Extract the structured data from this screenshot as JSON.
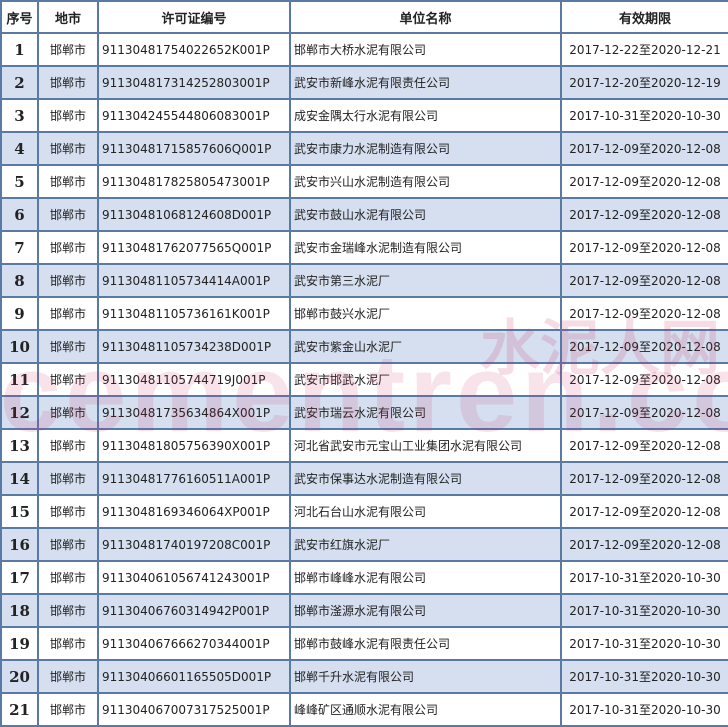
{
  "headers": [
    "序号",
    "地市",
    "许可证编号",
    "单位名称",
    "有效期限"
  ],
  "rows": [
    [
      "1",
      "邯郸市",
      "91130481754022652K001P",
      "邯郸市大桥水泥有限公司",
      "2017-12-22至2020-12-21"
    ],
    [
      "2",
      "邯郸市",
      "91130481731425280300​1P",
      "武安市新峰水泥有限责任公司",
      "2017-12-20至2020-12-19"
    ],
    [
      "3",
      "邯郸市",
      "91130424554480608300​1P",
      "成安金隅太行水泥有限公司",
      "2017-10-31至2020-10-30"
    ],
    [
      "4",
      "邯郸市",
      "91130481715857606Q001P",
      "武安市康力水泥制造有限公司",
      "2017-12-09至2020-12-08"
    ],
    [
      "5",
      "邯郸市",
      "91130481782580547300​1P",
      "武安市兴山水泥制造有限公司",
      "2017-12-09至2020-12-08"
    ],
    [
      "6",
      "邯郸市",
      "91130481068124608D001P",
      "武安市鼓山水泥有限公司",
      "2017-12-09至2020-12-08"
    ],
    [
      "7",
      "邯郸市",
      "91130481762077565Q001P",
      "武安市金瑞峰水泥制造有限公司",
      "2017-12-09至2020-12-08"
    ],
    [
      "8",
      "邯郸市",
      "91130481105734414A001P",
      "武安市第三水泥厂",
      "2017-12-09至2020-12-08"
    ],
    [
      "9",
      "邯郸市",
      "91130481105736161K001P",
      "邯郸市鼓兴水泥厂",
      "2017-12-09至2020-12-08"
    ],
    [
      "10",
      "邯郸市",
      "91130481105734238D001P",
      "武安市紫金山水泥厂",
      "2017-12-09至2020-12-08"
    ],
    [
      "11",
      "邯郸市",
      "91130481105744719J001P",
      "武安市邯武水泥厂",
      "2017-12-09至2020-12-08"
    ],
    [
      "12",
      "邯郸市",
      "91130481735634864X001P",
      "武安市瑞云水泥有限公司",
      "2017-12-09至2020-12-08"
    ],
    [
      "13",
      "邯郸市",
      "91130481805756390X001P",
      "河北省武安市元宝山工业集团水泥有限公司",
      "2017-12-09至2020-12-08"
    ],
    [
      "14",
      "邯郸市",
      "91130481776160511A001P",
      "武安市保事达水泥制造有限公司",
      "2017-12-09至2020-12-08"
    ],
    [
      "15",
      "邯郸市",
      "9113048169346064XP001P",
      "河北石台山水泥有限公司",
      "2017-12-09至2020-12-08"
    ],
    [
      "16",
      "邯郸市",
      "91130481740197208C001P",
      "武安市红旗水泥厂",
      "2017-12-09至2020-12-08"
    ],
    [
      "17",
      "邯郸市",
      "91130406105674124300​1P",
      "邯郸市峰峰水泥有限公司",
      "2017-10-31至2020-10-30"
    ],
    [
      "18",
      "邯郸市",
      "91130406760314942P001P",
      "邯郸市滏源水泥有限公司",
      "2017-10-31至2020-10-30"
    ],
    [
      "19",
      "邯郸市",
      "91130406766627034400​1P",
      "邯郸市鼓峰水泥有限责任公司",
      "2017-10-31至2020-10-30"
    ],
    [
      "20",
      "邯郸市",
      "91130406601165505D001P",
      "邯郸千升水泥有限公司",
      "2017-10-31至2020-10-30"
    ],
    [
      "21",
      "邯郸市",
      "91130406700731752500​1P",
      "峰峰矿区通顺水泥有限公司",
      "2017-10-31至2020-10-30"
    ]
  ],
  "watermark": {
    "latin": "cementren.com",
    "cjk": "水泥人网"
  },
  "colors": {
    "border": "#5a7aa6",
    "alt_row": "#d5dff0"
  }
}
